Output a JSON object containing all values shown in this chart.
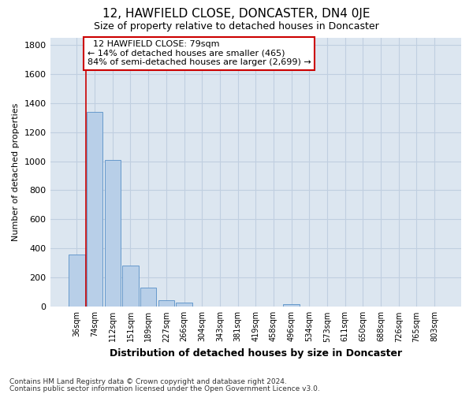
{
  "title1": "12, HAWFIELD CLOSE, DONCASTER, DN4 0JE",
  "title2": "Size of property relative to detached houses in Doncaster",
  "xlabel": "Distribution of detached houses by size in Doncaster",
  "ylabel": "Number of detached properties",
  "footnote1": "Contains HM Land Registry data © Crown copyright and database right 2024.",
  "footnote2": "Contains public sector information licensed under the Open Government Licence v3.0.",
  "categories": [
    "36sqm",
    "74sqm",
    "112sqm",
    "151sqm",
    "189sqm",
    "227sqm",
    "266sqm",
    "304sqm",
    "343sqm",
    "381sqm",
    "419sqm",
    "458sqm",
    "496sqm",
    "534sqm",
    "573sqm",
    "611sqm",
    "650sqm",
    "688sqm",
    "726sqm",
    "765sqm",
    "803sqm"
  ],
  "values": [
    360,
    1340,
    1010,
    285,
    130,
    45,
    28,
    0,
    0,
    0,
    0,
    0,
    20,
    0,
    0,
    0,
    0,
    0,
    0,
    0,
    0
  ],
  "bar_color": "#b8cfe8",
  "bar_edge_color": "#6699cc",
  "grid_color": "#c0cfe0",
  "bg_color": "#dce6f0",
  "property_name": "12 HAWFIELD CLOSE: 79sqm",
  "pct_smaller": 14,
  "n_smaller": 465,
  "pct_larger_semi": 84,
  "n_larger_semi": 2699,
  "vline_x_index": 0.5,
  "annotation_box_color": "#cc0000",
  "ylim": [
    0,
    1850
  ],
  "yticks": [
    0,
    200,
    400,
    600,
    800,
    1000,
    1200,
    1400,
    1600,
    1800
  ],
  "title1_fontsize": 11,
  "title2_fontsize": 9,
  "xlabel_fontsize": 9,
  "ylabel_fontsize": 8,
  "xtick_fontsize": 7,
  "ytick_fontsize": 8,
  "footnote_fontsize": 6.5
}
